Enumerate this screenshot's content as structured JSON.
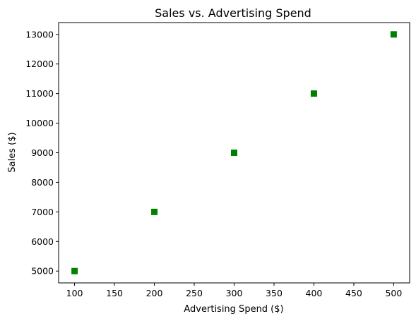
{
  "chart_data": {
    "type": "scatter",
    "title": "Sales vs. Advertising Spend",
    "xlabel": "Advertising Spend ($)",
    "ylabel": "Sales ($)",
    "x": [
      100,
      200,
      300,
      400,
      500
    ],
    "y": [
      5000,
      7000,
      9000,
      11000,
      13000
    ],
    "xlim": [
      80,
      520
    ],
    "ylim": [
      4600,
      13400
    ],
    "xticks": [
      "100",
      "150",
      "200",
      "250",
      "300",
      "350",
      "400",
      "450",
      "500"
    ],
    "yticks": [
      "5000",
      "6000",
      "7000",
      "8000",
      "9000",
      "10000",
      "11000",
      "12000",
      "13000"
    ],
    "marker": "square",
    "color": "#008000",
    "grid": false,
    "legend": "none"
  }
}
